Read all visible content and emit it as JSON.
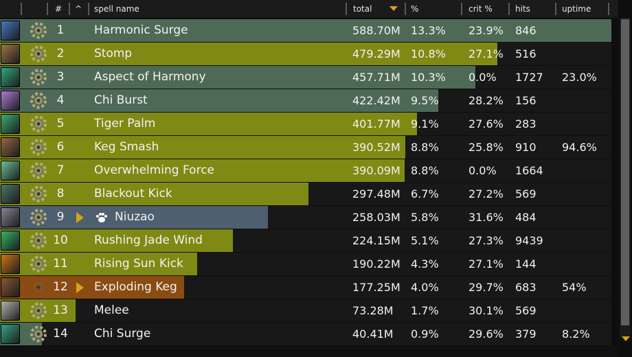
{
  "header": {
    "index_label": "#",
    "sort_label": "^",
    "name_label": "spell name",
    "total_label": "total",
    "pct_label": "%",
    "crit_label": "crit %",
    "hits_label": "hits",
    "uptime_label": "uptime"
  },
  "colors": {
    "monk_bar": "#7f8a14",
    "healing_bar": "#4a6a58",
    "pet_bar": "#4e5f70",
    "keg_bar": "#8a4c12",
    "sort_arrow": "#d4a418"
  },
  "rows": [
    {
      "num": "1",
      "name": "Harmonic Surge",
      "total": "588.70M",
      "pct": "13.3%",
      "crit": "23.9%",
      "hits": "846",
      "uptime": "",
      "bar": 1.0,
      "bar_color": "#4e6a57",
      "icon": "harmonic-surge-icon",
      "icon_color": "#4a7ac8"
    },
    {
      "num": "2",
      "name": "Stomp",
      "total": "479.29M",
      "pct": "10.8%",
      "crit": "27.1%",
      "hits": "516",
      "uptime": "",
      "bar": 0.814,
      "bar_color": "#7f8a14",
      "icon": "stomp-icon",
      "icon_color": "#a07a4a"
    },
    {
      "num": "3",
      "name": "Aspect of Harmony",
      "total": "457.71M",
      "pct": "10.3%",
      "crit": "0.0%",
      "hits": "1727",
      "uptime": "23.0%",
      "bar": 0.777,
      "bar_color": "#4e6a57",
      "icon": "aspect-of-harmony-icon",
      "icon_color": "#2fae7e"
    },
    {
      "num": "4",
      "name": "Chi Burst",
      "total": "422.42M",
      "pct": "9.5%",
      "crit": "28.2%",
      "hits": "156",
      "uptime": "",
      "bar": 0.717,
      "bar_color": "#4e6a57",
      "icon": "chi-burst-icon",
      "icon_color": "#b57de0"
    },
    {
      "num": "5",
      "name": "Tiger Palm",
      "total": "401.77M",
      "pct": "9.1%",
      "crit": "27.6%",
      "hits": "283",
      "uptime": "",
      "bar": 0.682,
      "bar_color": "#7f8a14",
      "icon": "tiger-palm-icon",
      "icon_color": "#3bb37a"
    },
    {
      "num": "6",
      "name": "Keg Smash",
      "total": "390.52M",
      "pct": "8.8%",
      "crit": "25.8%",
      "hits": "910",
      "uptime": "94.6%",
      "bar": 0.663,
      "bar_color": "#7f8a14",
      "icon": "keg-smash-icon",
      "icon_color": "#9a6a4a"
    },
    {
      "num": "7",
      "name": "Overwhelming Force",
      "total": "390.09M",
      "pct": "8.8%",
      "crit": "0.0%",
      "hits": "1664",
      "uptime": "",
      "bar": 0.662,
      "bar_color": "#7f8a14",
      "icon": "overwhelming-force-icon",
      "icon_color": "#6fc2a0"
    },
    {
      "num": "8",
      "name": "Blackout Kick",
      "total": "297.48M",
      "pct": "6.7%",
      "crit": "27.2%",
      "hits": "569",
      "uptime": "",
      "bar": 0.505,
      "bar_color": "#7f8a14",
      "icon": "blackout-kick-icon",
      "icon_color": "#4d7a6e"
    },
    {
      "num": "9",
      "name": "Niuzao",
      "total": "258.03M",
      "pct": "5.8%",
      "crit": "31.6%",
      "hits": "484",
      "uptime": "",
      "bar": 0.438,
      "bar_color": "#4e5f70",
      "icon": "niuzao-icon",
      "icon_color": "#8a8a96",
      "pet": true
    },
    {
      "num": "10",
      "name": "Rushing Jade Wind",
      "total": "224.15M",
      "pct": "5.1%",
      "crit": "27.3%",
      "hits": "9439",
      "uptime": "",
      "bar": 0.381,
      "bar_color": "#7f8a14",
      "icon": "rushing-jade-wind-icon",
      "icon_color": "#36b86e"
    },
    {
      "num": "11",
      "name": "Rising Sun Kick",
      "total": "190.22M",
      "pct": "4.3%",
      "crit": "27.1%",
      "hits": "144",
      "uptime": "",
      "bar": 0.323,
      "bar_color": "#7f8a14",
      "icon": "rising-sun-kick-icon",
      "icon_color": "#d27a18"
    },
    {
      "num": "12",
      "name": "Exploding Keg",
      "total": "177.25M",
      "pct": "4.0%",
      "crit": "29.7%",
      "hits": "683",
      "uptime": "54%",
      "bar": 0.301,
      "bar_color": "#8a4c12",
      "icon": "exploding-keg-icon",
      "icon_color": "#8a5a3a",
      "expand": true,
      "gear_tint": "#8a4c12"
    },
    {
      "num": "13",
      "name": "Melee",
      "total": "73.28M",
      "pct": "1.7%",
      "crit": "30.1%",
      "hits": "569",
      "uptime": "",
      "bar": 0.124,
      "bar_color": "#7f8a14",
      "icon": "melee-icon",
      "icon_color": "#b8b8b0"
    },
    {
      "num": "14",
      "name": "Chi Surge",
      "total": "40.41M",
      "pct": "0.9%",
      "crit": "29.6%",
      "hits": "379",
      "uptime": "8.2%",
      "bar": 0.069,
      "bar_color": "#4e6a57",
      "icon": "chi-surge-icon",
      "icon_color": "#3aa88c"
    }
  ]
}
